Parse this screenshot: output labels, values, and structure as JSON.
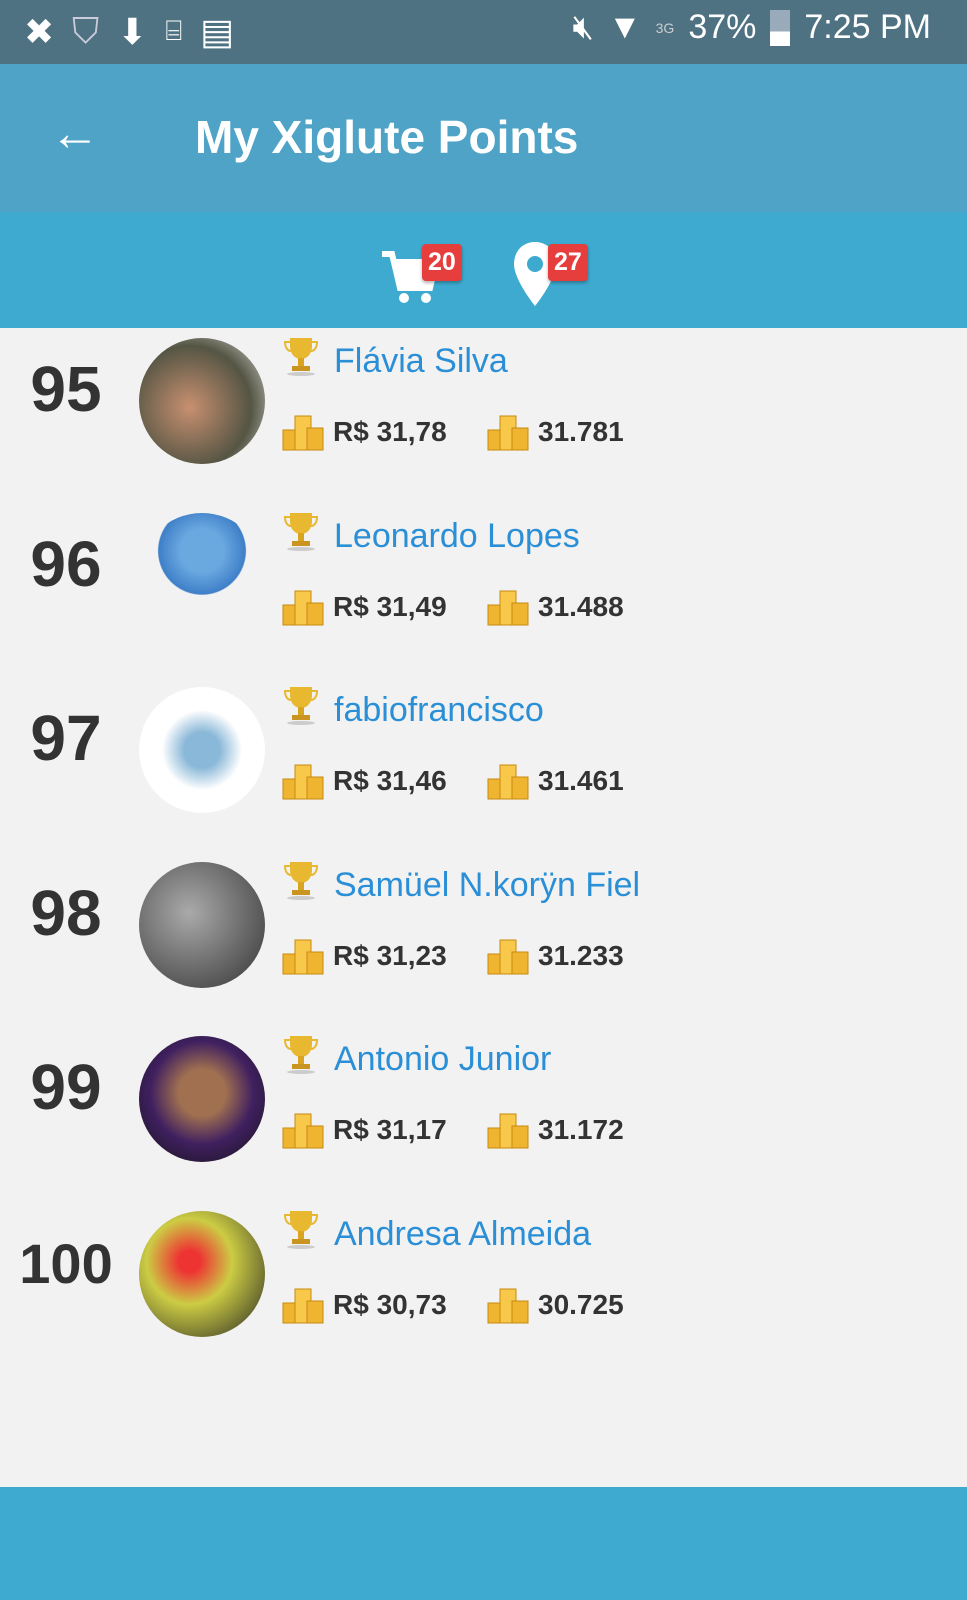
{
  "status_bar": {
    "battery": "37%",
    "time": "7:25 PM",
    "network": "3G",
    "icons": [
      "app-icon",
      "shield-icon",
      "download-icon",
      "voicemail-icon",
      "message-icon",
      "mute-icon",
      "wifi-icon",
      "signal-icon",
      "battery-icon"
    ]
  },
  "header": {
    "title": "My Xiglute Points",
    "back_icon": "arrow-left-icon"
  },
  "toolbar": {
    "cart_badge": "20",
    "location_badge": "27"
  },
  "colors": {
    "status_bar": "#4e7282",
    "app_bar": "#4ea3c7",
    "sub_bar": "#3eaad0",
    "name": "#2a8fd6",
    "badge": "#e53e3c"
  },
  "ranking": [
    {
      "rank": "95",
      "name": "Flávia Silva",
      "money": "R$ 31,78",
      "points": "31.781"
    },
    {
      "rank": "96",
      "name": "Leonardo Lopes",
      "money": "R$ 31,49",
      "points": "31.488"
    },
    {
      "rank": "97",
      "name": "fabiofrancisco",
      "money": "R$ 31,46",
      "points": "31.461"
    },
    {
      "rank": "98",
      "name": "Samüel N.korÿn Fiel",
      "money": "R$ 31,23",
      "points": "31.233"
    },
    {
      "rank": "99",
      "name": "Antonio Junior",
      "money": "R$ 31,17",
      "points": "31.172"
    },
    {
      "rank": "100",
      "name": "Andresa Almeida",
      "money": "R$ 30,73",
      "points": "30.725"
    }
  ]
}
